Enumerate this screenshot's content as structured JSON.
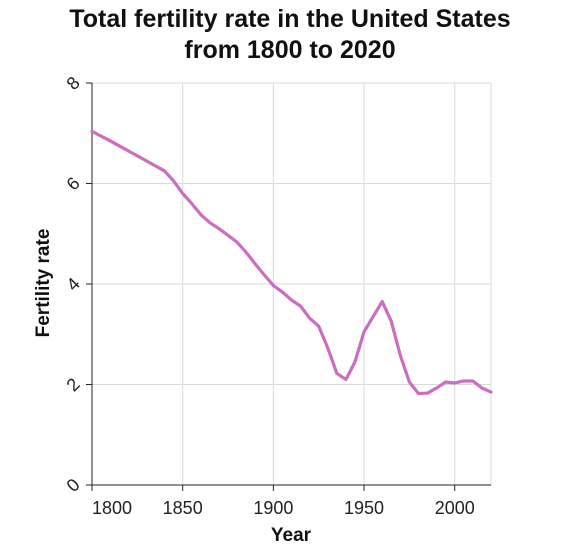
{
  "chart_data": {
    "type": "line",
    "title_lines": [
      "Total fertility rate in the United States",
      "from 1800 to 2020"
    ],
    "xlabel": "Year",
    "ylabel": "Fertility rate",
    "xlim": [
      1800,
      2020
    ],
    "ylim": [
      0,
      8
    ],
    "x_ticks": [
      1800,
      1850,
      1900,
      1950,
      2000
    ],
    "x_tick_labels": [
      "1800",
      "1850",
      "1900",
      "1950",
      "2000"
    ],
    "y_ticks": [
      0,
      2,
      4,
      6,
      8
    ],
    "y_tick_labels": [
      "0",
      "2",
      "4",
      "6",
      "8"
    ],
    "grid": true,
    "series": [
      {
        "color": "#cc6dc0",
        "x": [
          1800,
          1803,
          1810,
          1820,
          1830,
          1840,
          1845,
          1850,
          1855,
          1860,
          1865,
          1870,
          1875,
          1880,
          1885,
          1890,
          1895,
          1900,
          1905,
          1910,
          1915,
          1920,
          1925,
          1930,
          1935,
          1940,
          1945,
          1950,
          1955,
          1960,
          1965,
          1970,
          1975,
          1980,
          1985,
          1990,
          1995,
          2000,
          2005,
          2010,
          2015,
          2020
        ],
        "y": [
          7.04,
          6.98,
          6.85,
          6.65,
          6.45,
          6.25,
          6.05,
          5.8,
          5.6,
          5.38,
          5.22,
          5.1,
          4.97,
          4.83,
          4.63,
          4.4,
          4.18,
          3.97,
          3.84,
          3.68,
          3.56,
          3.32,
          3.16,
          2.73,
          2.22,
          2.1,
          2.45,
          3.05,
          3.35,
          3.65,
          3.26,
          2.58,
          2.05,
          1.82,
          1.83,
          1.93,
          2.05,
          2.03,
          2.07,
          2.07,
          1.93,
          1.85
        ]
      }
    ]
  }
}
